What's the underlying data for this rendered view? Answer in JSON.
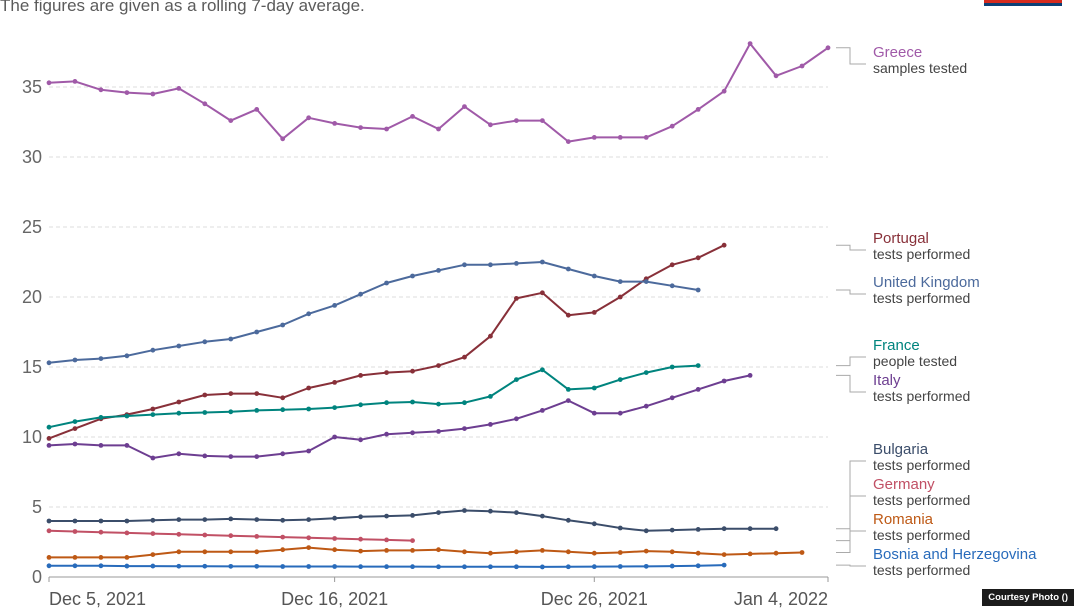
{
  "subtitle": "The figures are given as a rolling 7-day average.",
  "credit": "Courtesy Photo ()",
  "flag_colors": [
    "#d52b1e",
    "#0c4076",
    "#ffffff"
  ],
  "chart_data": {
    "type": "line",
    "title": "",
    "xlabel": "",
    "ylabel": "",
    "ylim": [
      0,
      38
    ],
    "y_ticks": [
      0,
      5,
      10,
      15,
      20,
      25,
      30,
      35
    ],
    "x_ticks": [
      {
        "label": "Dec 5, 2021",
        "day": 0
      },
      {
        "label": "Dec 16, 2021",
        "day": 11
      },
      {
        "label": "Dec 26, 2021",
        "day": 21
      },
      {
        "label": "Jan 4, 2022",
        "day": 30
      }
    ],
    "x_start": "2021-12-05",
    "x_end": "2022-01-04",
    "grid": "horizontal-dashed",
    "legend": "right, labels at line ends",
    "series": [
      {
        "country": "Greece",
        "metric": "samples tested",
        "color": "#a05aa8",
        "values": [
          35.3,
          35.4,
          34.8,
          34.6,
          34.5,
          34.9,
          33.8,
          32.6,
          33.4,
          31.3,
          32.8,
          32.4,
          32.1,
          32.0,
          32.9,
          32.0,
          33.6,
          32.3,
          32.6,
          32.6,
          31.1,
          31.4,
          31.4,
          31.4,
          32.2,
          33.4,
          34.7,
          38.1,
          35.8,
          36.5,
          37.8
        ]
      },
      {
        "country": "Portugal",
        "metric": "tests performed",
        "color": "#883039",
        "values": [
          9.9,
          10.6,
          11.3,
          11.6,
          12.0,
          12.5,
          13.0,
          13.1,
          13.1,
          12.8,
          13.5,
          13.9,
          14.4,
          14.6,
          14.7,
          15.1,
          15.7,
          17.2,
          19.9,
          20.3,
          18.7,
          18.9,
          20.0,
          21.3,
          22.3,
          22.8,
          23.7
        ]
      },
      {
        "country": "United Kingdom",
        "metric": "tests performed",
        "color": "#4c6a9c",
        "values": [
          15.3,
          15.5,
          15.6,
          15.8,
          16.2,
          16.5,
          16.8,
          17.0,
          17.5,
          18.0,
          18.8,
          19.4,
          20.2,
          21.0,
          21.5,
          21.9,
          22.3,
          22.3,
          22.4,
          22.5,
          22.0,
          21.5,
          21.1,
          21.1,
          20.8,
          20.5
        ]
      },
      {
        "country": "France",
        "metric": "people tested",
        "color": "#00847e",
        "values": [
          10.7,
          11.1,
          11.4,
          11.5,
          11.6,
          11.7,
          11.75,
          11.8,
          11.9,
          11.95,
          12.0,
          12.1,
          12.3,
          12.45,
          12.5,
          12.35,
          12.45,
          12.9,
          14.1,
          14.8,
          13.4,
          13.5,
          14.1,
          14.6,
          15.0,
          15.1
        ]
      },
      {
        "country": "Italy",
        "metric": "tests performed",
        "color": "#6d3e91",
        "values": [
          9.4,
          9.5,
          9.4,
          9.4,
          8.5,
          8.8,
          8.65,
          8.6,
          8.6,
          8.8,
          9.0,
          10.0,
          9.8,
          10.2,
          10.3,
          10.4,
          10.6,
          10.9,
          11.3,
          11.9,
          12.6,
          11.7,
          11.7,
          12.2,
          12.8,
          13.4,
          14.0,
          14.4
        ]
      },
      {
        "country": "Bulgaria",
        "metric": "tests performed",
        "color": "#3b4d6a",
        "values": [
          4.0,
          4.0,
          4.0,
          4.0,
          4.05,
          4.1,
          4.1,
          4.15,
          4.1,
          4.05,
          4.1,
          4.2,
          4.3,
          4.35,
          4.4,
          4.6,
          4.75,
          4.7,
          4.6,
          4.35,
          4.05,
          3.8,
          3.5,
          3.3,
          3.35,
          3.4,
          3.45,
          3.45,
          3.45
        ]
      },
      {
        "country": "Germany",
        "metric": "tests performed",
        "color": "#c15065",
        "values": [
          3.3,
          3.25,
          3.2,
          3.15,
          3.1,
          3.05,
          3.0,
          2.95,
          2.9,
          2.85,
          2.8,
          2.75,
          2.7,
          2.65,
          2.6
        ]
      },
      {
        "country": "Romania",
        "metric": "tests performed",
        "color": "#be5915",
        "values": [
          1.4,
          1.4,
          1.4,
          1.4,
          1.6,
          1.8,
          1.8,
          1.8,
          1.8,
          1.95,
          2.1,
          1.95,
          1.85,
          1.9,
          1.9,
          1.95,
          1.8,
          1.7,
          1.8,
          1.9,
          1.8,
          1.7,
          1.75,
          1.85,
          1.8,
          1.7,
          1.6,
          1.65,
          1.7,
          1.75
        ]
      },
      {
        "country": "Bosnia and Herzegovina",
        "metric": "tests performed",
        "color": "#286bbb",
        "values": [
          0.8,
          0.8,
          0.8,
          0.78,
          0.78,
          0.77,
          0.77,
          0.76,
          0.76,
          0.75,
          0.75,
          0.75,
          0.74,
          0.74,
          0.74,
          0.73,
          0.73,
          0.73,
          0.73,
          0.72,
          0.73,
          0.74,
          0.75,
          0.76,
          0.78,
          0.8,
          0.85
        ]
      }
    ]
  }
}
